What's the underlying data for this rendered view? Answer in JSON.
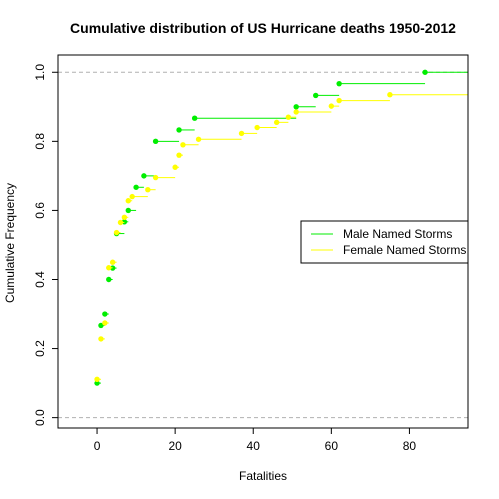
{
  "chart_data": {
    "type": "step",
    "title": "Cumulative distribution of US Hurricane deaths 1950-2012",
    "xlabel": "Fatalities",
    "ylabel": "Cumulative Frequency",
    "xlim": [
      -10,
      95
    ],
    "ylim": [
      -0.03,
      1.05
    ],
    "x_ticks": [
      0,
      20,
      40,
      60,
      80
    ],
    "x_tick_labels": [
      "0",
      "20",
      "40",
      "60",
      "80"
    ],
    "y_ticks": [
      0.0,
      0.2,
      0.4,
      0.6,
      0.8,
      1.0
    ],
    "y_tick_labels": [
      "0.0",
      "0.2",
      "0.4",
      "0.6",
      "0.8",
      "1.0"
    ],
    "reference_lines": [
      0.0,
      1.0
    ],
    "legend_position": "right",
    "series": [
      {
        "name": "Male Named Storms",
        "color": "#00ee00",
        "x": [
          0,
          1,
          2,
          3,
          4,
          5,
          7,
          8,
          10,
          12,
          15,
          21,
          25,
          51,
          56,
          62,
          84
        ],
        "y": [
          0.1,
          0.267,
          0.3,
          0.4,
          0.433,
          0.533,
          0.567,
          0.6,
          0.667,
          0.7,
          0.8,
          0.833,
          0.867,
          0.9,
          0.933,
          0.967,
          1.0
        ]
      },
      {
        "name": "Female Named Storms",
        "color": "#ffff00",
        "x": [
          0,
          1,
          2,
          3,
          4,
          5,
          6,
          7,
          8,
          9,
          13,
          15,
          20,
          21,
          22,
          26,
          37,
          41,
          46,
          49,
          51,
          60,
          62,
          75
        ],
        "y": [
          0.111,
          0.228,
          0.274,
          0.434,
          0.45,
          0.536,
          0.565,
          0.58,
          0.628,
          0.64,
          0.66,
          0.695,
          0.725,
          0.76,
          0.79,
          0.806,
          0.823,
          0.84,
          0.855,
          0.87,
          0.885,
          0.902,
          0.918,
          0.935
        ]
      }
    ]
  }
}
